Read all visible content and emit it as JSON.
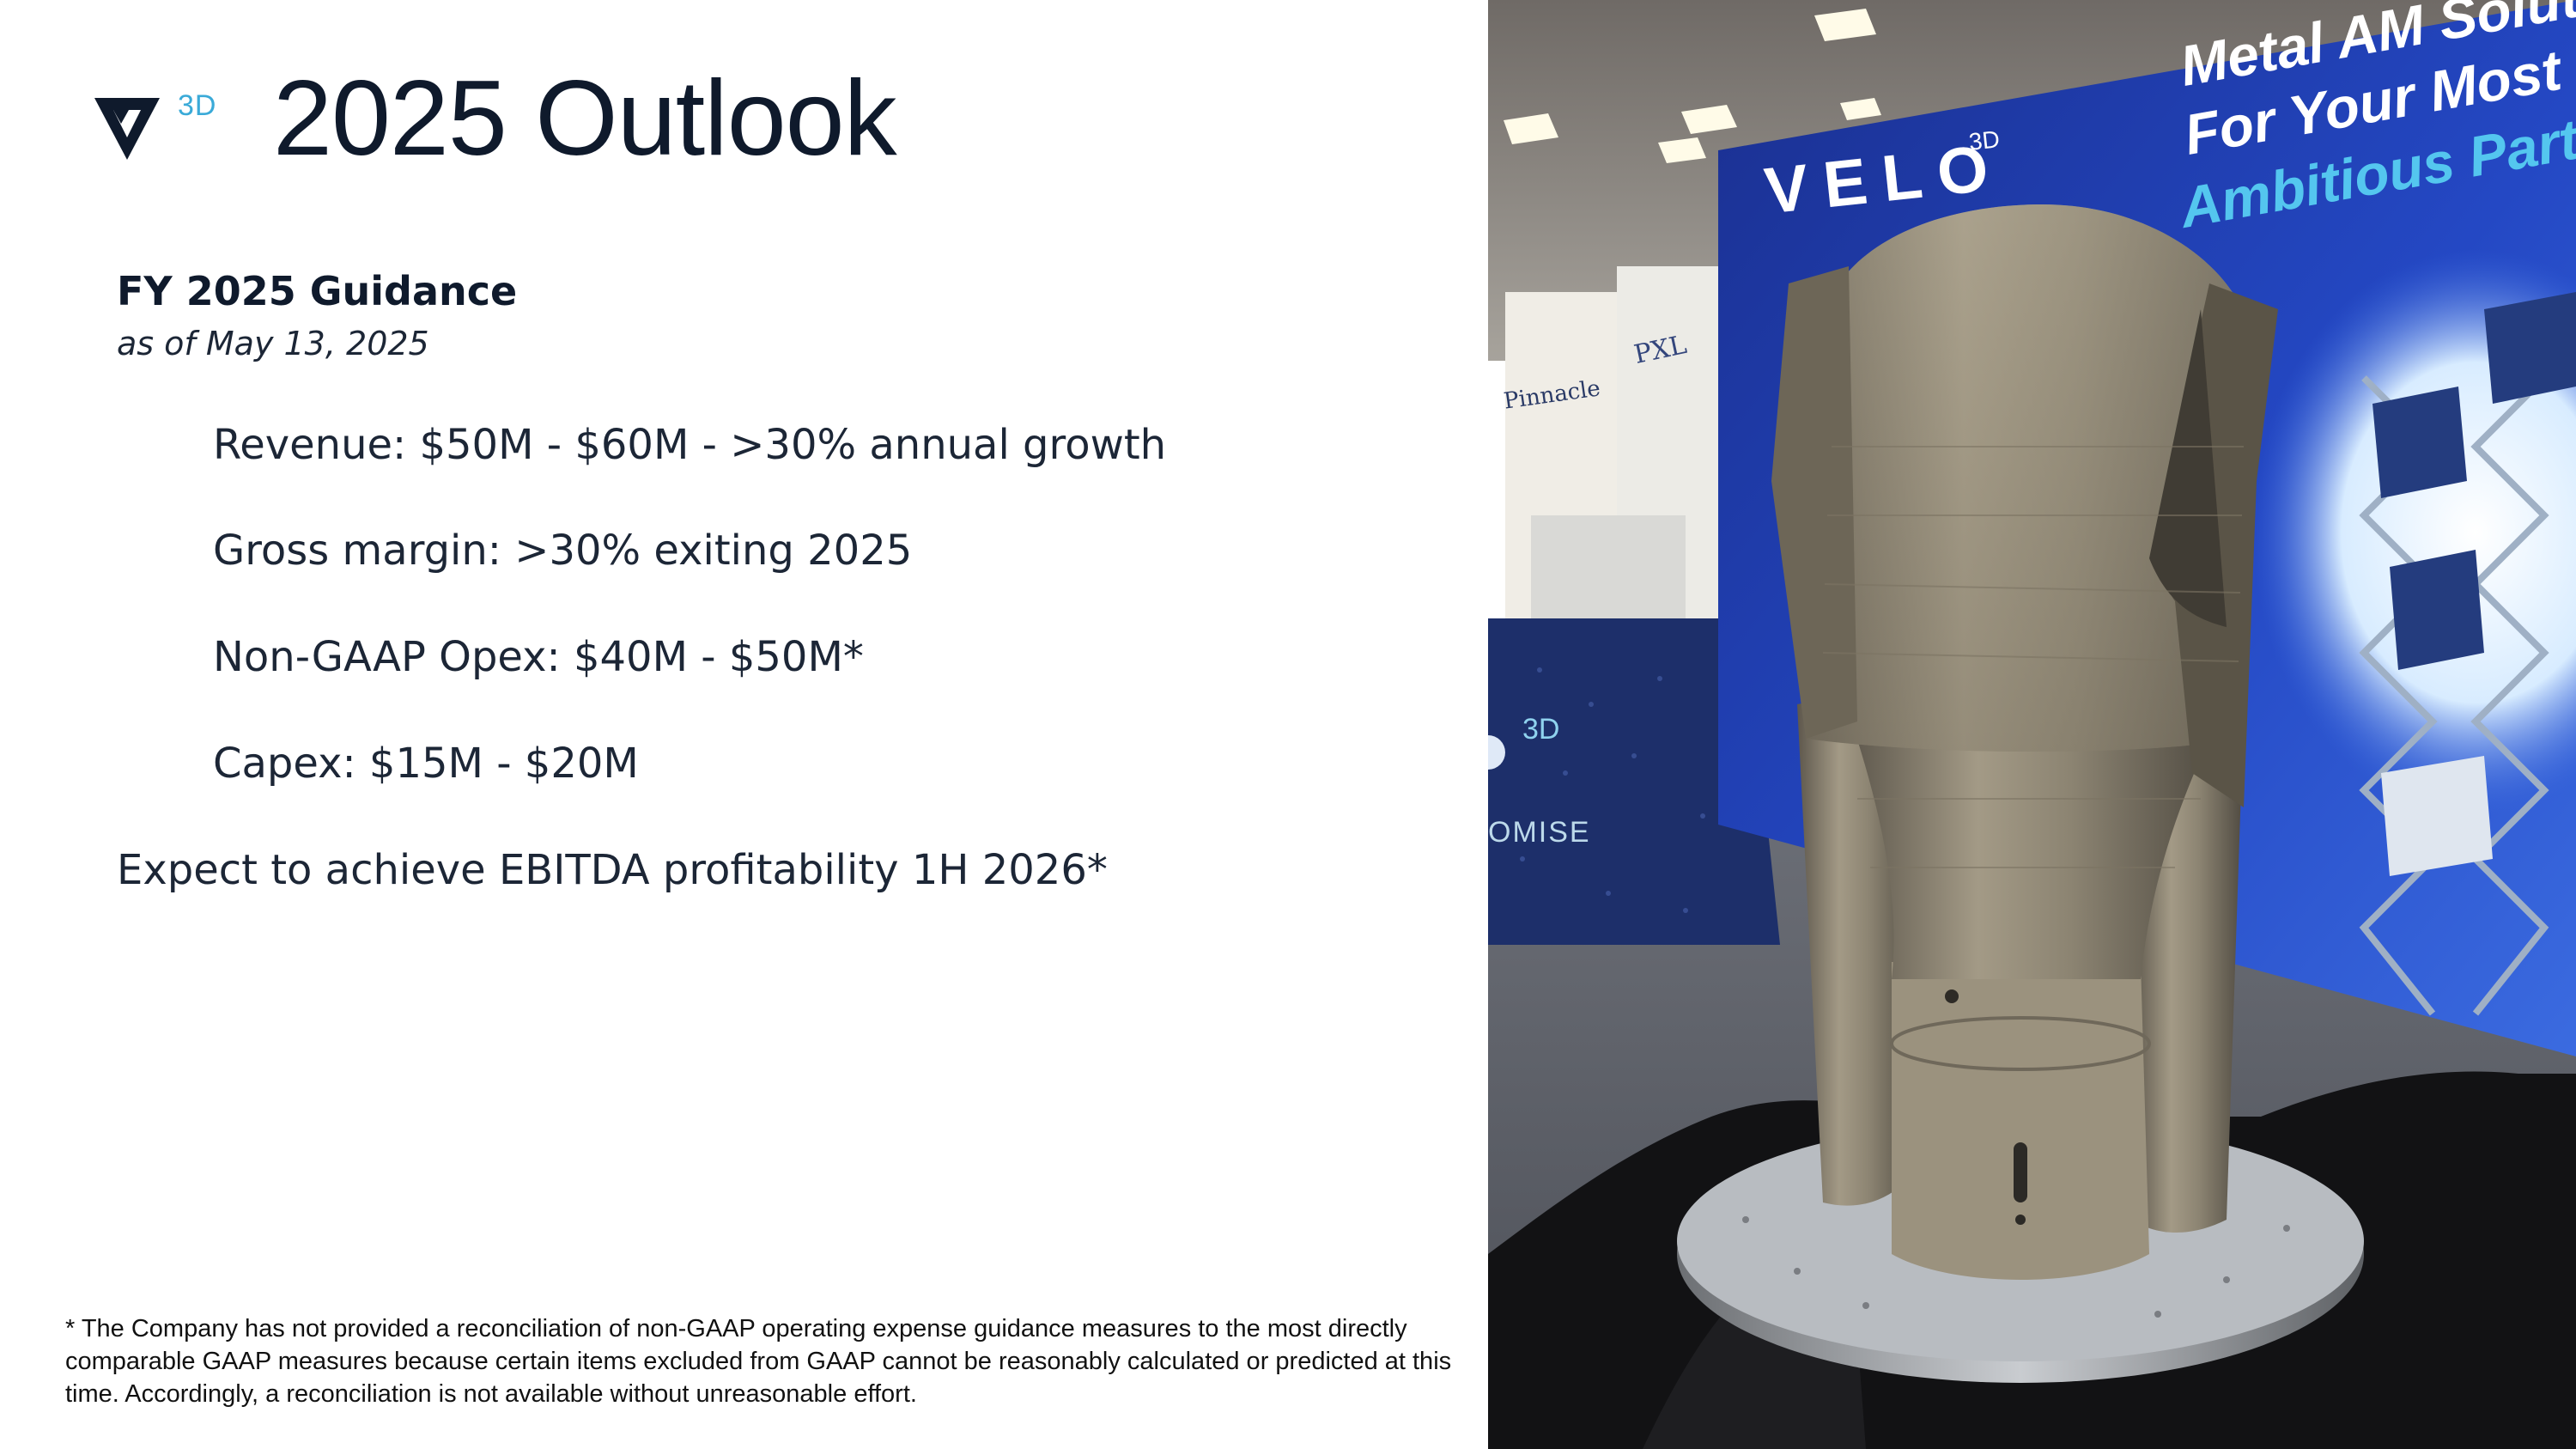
{
  "slide": {
    "logo": {
      "mark_icon": "velo-v-logo-icon",
      "suffix": "3D"
    },
    "title": "2025 Outlook",
    "guidance_title": "FY 2025 Guidance",
    "as_of": "as of May 13, 2025",
    "lines": [
      "Revenue: $50M - $60M - >30% annual growth",
      "Gross margin: >30% exiting 2025",
      "Non-GAAP Opex:  $40M - $50M*",
      "Capex:  $15M - $20M",
      "Expect to achieve EBITDA profitability 1H 2026*"
    ],
    "footnote": "* The Company has not provided a reconciliation of non-GAAP operating expense guidance measures to the most directly comparable GAAP measures because certain items excluded from GAAP cannot be reasonably calculated or predicted at this time. Accordingly, a reconciliation is not available without unreasonable effort."
  },
  "photo": {
    "banner_lines": [
      "Metal AM Solut",
      "For Your Most",
      "Ambitious Parts"
    ],
    "booth_logo": "VELO",
    "booth_logo_suffix": "3D",
    "table_text": "3D",
    "table_text_2": "OMISE",
    "sign_left": "Pinnacle",
    "sign_right": "PXL",
    "colors": {
      "banner_blue": "#1f3fb4",
      "accent_cyan": "#54c6ef",
      "metal": "#8a8272"
    }
  }
}
